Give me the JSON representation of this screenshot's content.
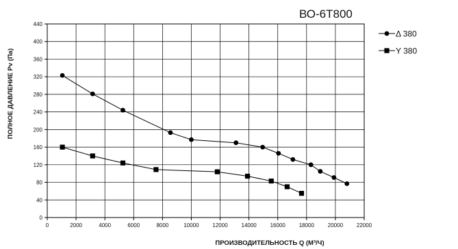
{
  "chart_data": {
    "type": "line",
    "title": "ВО-6Т800",
    "xlabel": "ПРОИЗВОДИТЕЛЬНОСТЬ Q (М³/Ч)",
    "ylabel": "ПОЛНОЕ ДАВЛЕНИЕ Pv (Па)",
    "xlim": [
      0,
      22000
    ],
    "ylim": [
      0,
      440
    ],
    "x_ticks": [
      0,
      2000,
      4000,
      6000,
      8000,
      10000,
      12000,
      14000,
      16000,
      18000,
      20000,
      22000
    ],
    "y_ticks": [
      0,
      40,
      80,
      120,
      160,
      200,
      240,
      280,
      320,
      360,
      400,
      440
    ],
    "grid": true,
    "legend_position": "right",
    "series": [
      {
        "name": "Δ 380",
        "marker": "circle",
        "color": "#000000",
        "points": [
          [
            1050,
            323
          ],
          [
            3150,
            281
          ],
          [
            5250,
            244
          ],
          [
            8550,
            193
          ],
          [
            10000,
            177
          ],
          [
            13100,
            170
          ],
          [
            14950,
            160
          ],
          [
            16050,
            146
          ],
          [
            17050,
            132
          ],
          [
            18300,
            120
          ],
          [
            18950,
            105
          ],
          [
            19900,
            91
          ],
          [
            20800,
            77
          ]
        ]
      },
      {
        "name": "Y 380",
        "marker": "square",
        "color": "#000000",
        "points": [
          [
            1050,
            160
          ],
          [
            3150,
            140
          ],
          [
            5250,
            124
          ],
          [
            7550,
            109
          ],
          [
            11800,
            104
          ],
          [
            13900,
            94
          ],
          [
            15550,
            83
          ],
          [
            16650,
            70
          ],
          [
            17650,
            55
          ]
        ]
      }
    ]
  }
}
